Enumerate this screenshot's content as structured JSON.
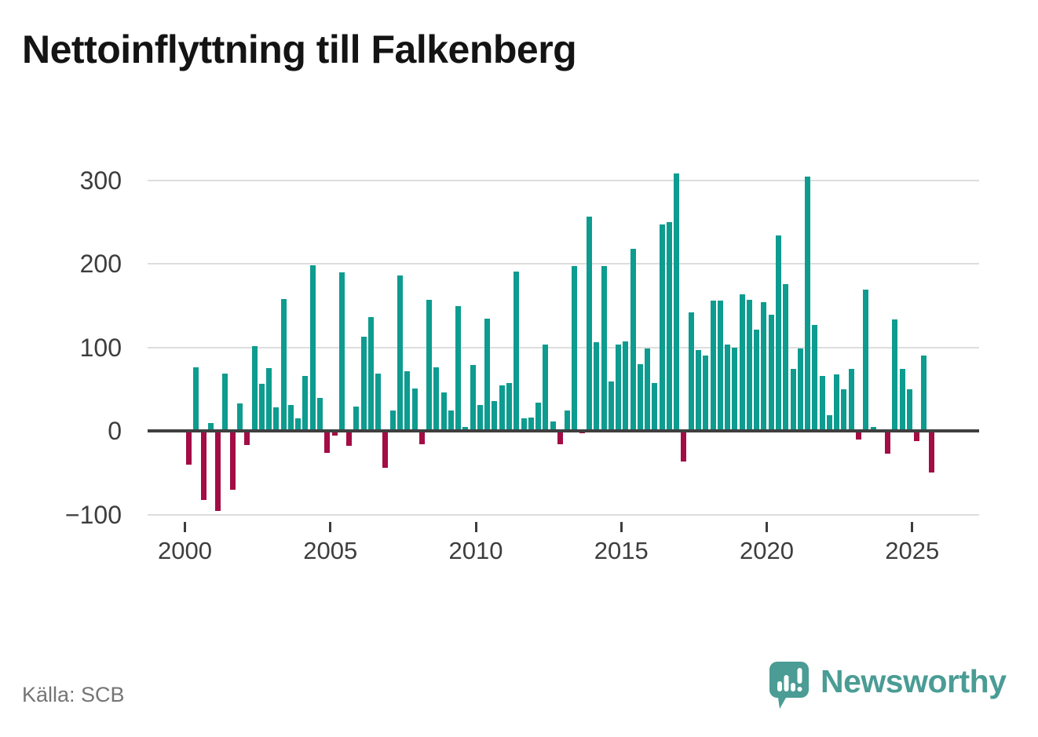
{
  "title": "Nettoinflyttning till Falkenberg",
  "source": "Källa: SCB",
  "branding": {
    "name": "Newsworthy",
    "color": "#4A9C94",
    "icon": "speech-bubble-bar-chart-icon"
  },
  "colors": {
    "positive_bar": "#0D9C8F",
    "negative_bar": "#A30C45",
    "zero_axis": "#3F3F3F",
    "gridline": "#DDDDDD",
    "axis_labels": "#3D3D3D",
    "source_text": "#757575",
    "title_text": "#141414"
  },
  "chart_data": {
    "type": "bar",
    "title": "Nettoinflyttning till Falkenberg",
    "frequency": "quarterly",
    "start_period": "2000-Q1",
    "end_period": "2025-Q3",
    "values": [
      -40,
      76,
      -83,
      9,
      -96,
      69,
      -70,
      33,
      -17,
      101,
      56,
      75,
      28,
      158,
      31,
      15,
      66,
      198,
      39,
      -26,
      -6,
      190,
      -18,
      29,
      113,
      136,
      69,
      -44,
      24,
      186,
      71,
      51,
      -16,
      157,
      76,
      46,
      24,
      149,
      5,
      79,
      31,
      134,
      36,
      54,
      57,
      191,
      15,
      16,
      34,
      103,
      11,
      -16,
      24,
      197,
      -3,
      256,
      106,
      197,
      59,
      103,
      107,
      218,
      80,
      99,
      57,
      247,
      250,
      308,
      -37,
      142,
      97,
      90,
      156,
      156,
      103,
      100,
      163,
      157,
      121,
      154,
      139,
      234,
      176,
      74,
      99,
      304,
      127,
      66,
      19,
      68,
      50,
      74,
      -10,
      169,
      5,
      0,
      -27,
      133,
      74,
      50,
      -12,
      90,
      -50
    ],
    "x_tick_years": [
      2000,
      2005,
      2010,
      2015,
      2020,
      2025
    ],
    "x_tick_labels": [
      "2000",
      "2005",
      "2010",
      "2015",
      "2020",
      "2025"
    ],
    "y_ticks": [
      300,
      200,
      100,
      0,
      -100
    ],
    "y_tick_labels": [
      "300",
      "200",
      "100",
      "0",
      "−100"
    ],
    "ylim": [
      -110,
      320
    ],
    "grid": true,
    "legend": false
  }
}
